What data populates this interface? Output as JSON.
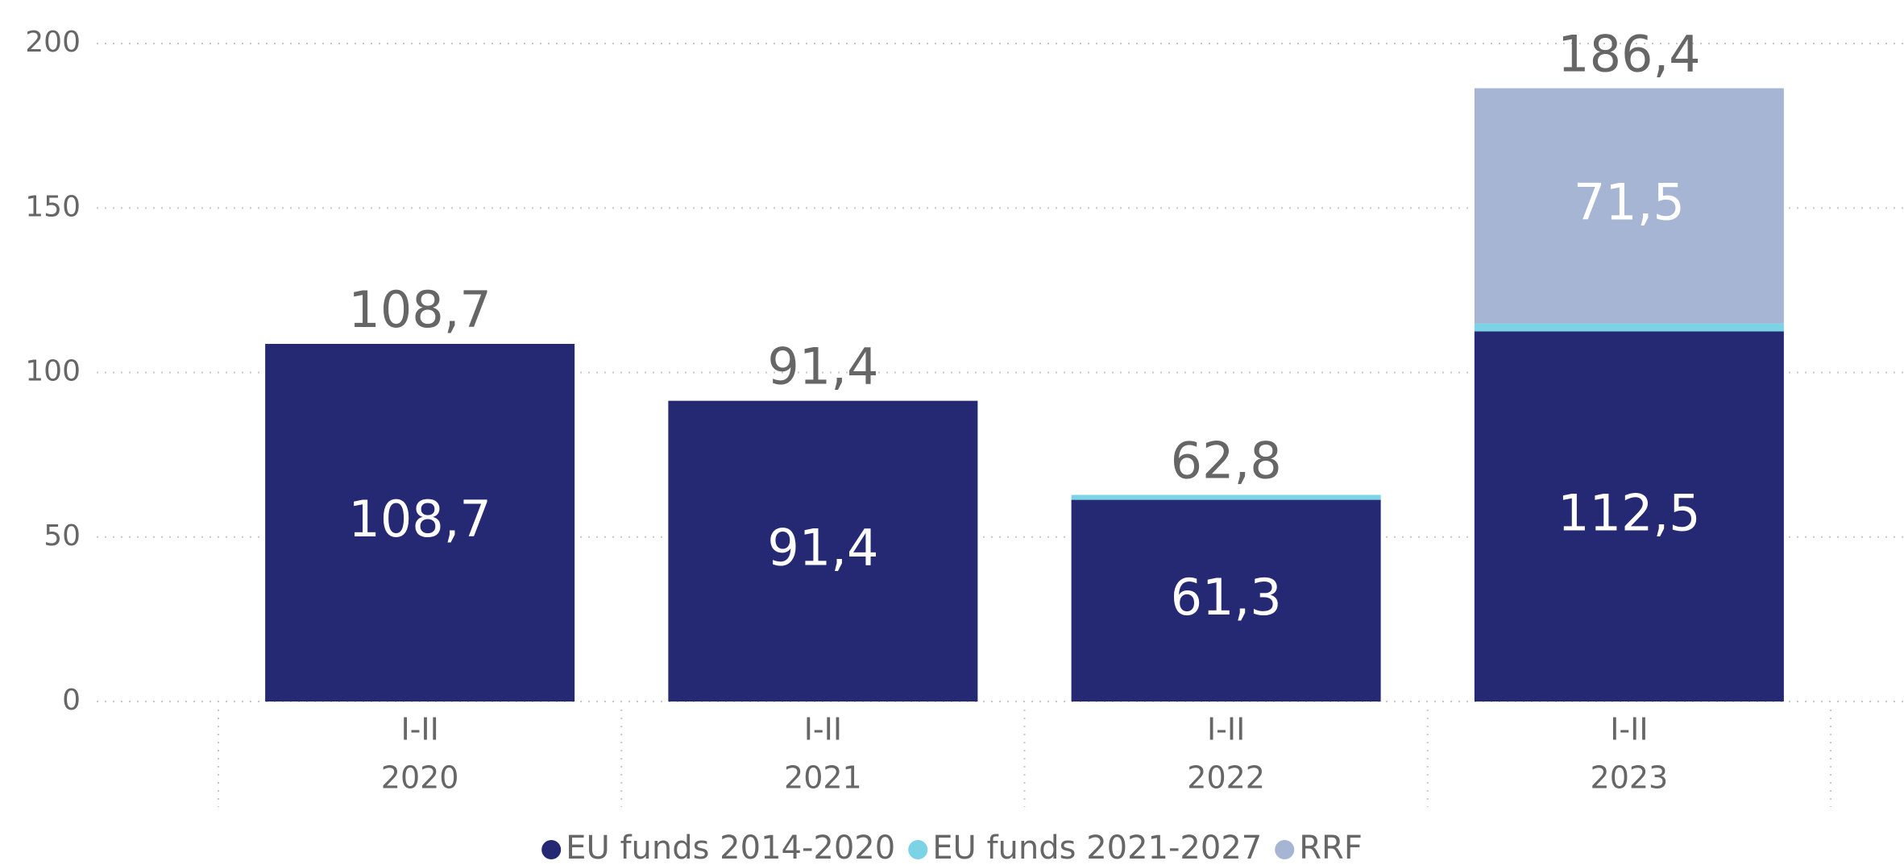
{
  "chart_data": {
    "type": "bar",
    "stacked": true,
    "categories": [
      [
        "I-II",
        "2020"
      ],
      [
        "I-II",
        "2021"
      ],
      [
        "I-II",
        "2022"
      ],
      [
        "I-II",
        "2023"
      ]
    ],
    "series": [
      {
        "name": "EU funds 2014-2020",
        "color": "#252872",
        "values": [
          108.7,
          91.4,
          61.3,
          112.5
        ],
        "value_labels": [
          "108,7",
          "91,4",
          "61,3",
          "112,5"
        ]
      },
      {
        "name": "EU funds 2021-2027",
        "color": "#7dd3e6",
        "values": [
          null,
          null,
          1.5,
          2.4
        ]
      },
      {
        "name": "RRF",
        "color": "#a6b5d4",
        "values": [
          null,
          null,
          null,
          71.5
        ],
        "value_labels": [
          null,
          null,
          null,
          "71,5"
        ]
      }
    ],
    "totals": [
      108.7,
      91.4,
      62.8,
      186.4
    ],
    "total_labels": [
      "108,7",
      "91,4",
      "62,8",
      "186,4"
    ],
    "ylim": [
      0,
      200
    ],
    "yticks": [
      0,
      50,
      100,
      150,
      200
    ],
    "grid": true,
    "legend": "bottom"
  }
}
